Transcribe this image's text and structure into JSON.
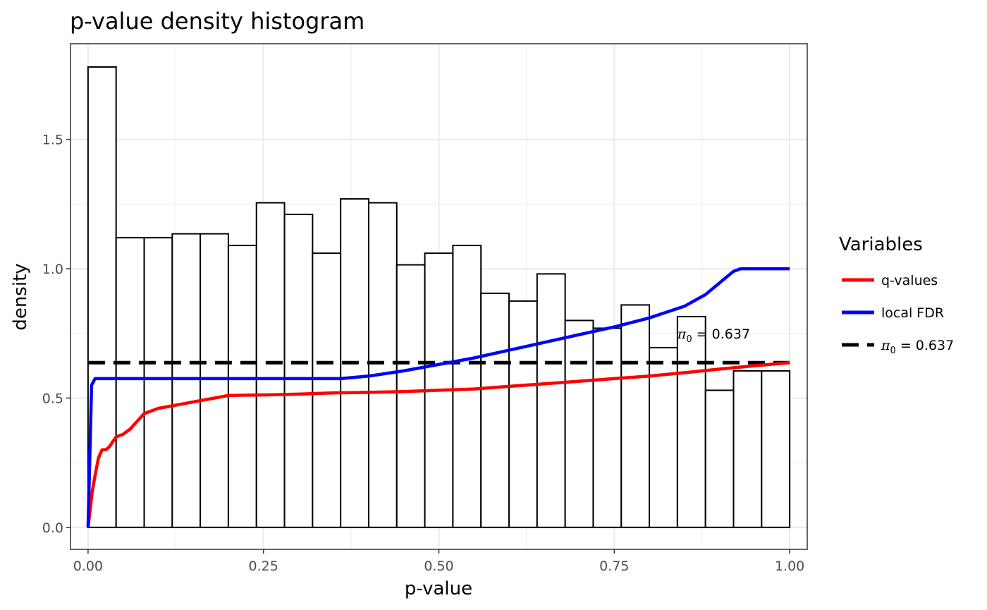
{
  "chart_data": {
    "type": "bar",
    "title": "p-value density histogram",
    "xlabel": "p-value",
    "ylabel": "density",
    "xlim": [
      -0.025,
      1.025
    ],
    "ylim": [
      -0.085,
      1.87
    ],
    "x_ticks": [
      0,
      0.25,
      0.5,
      0.75,
      1
    ],
    "x_tick_labels": [
      "0.00",
      "0.25",
      "0.50",
      "0.75",
      "1.00"
    ],
    "y_ticks": [
      0,
      0.5,
      1,
      1.5
    ],
    "y_tick_labels": [
      "0.0",
      "0.5",
      "1.0",
      "1.5"
    ],
    "grid": true,
    "bin_width": 0.04,
    "bins": [
      {
        "start": 0.0,
        "end": 0.04,
        "density": 1.78
      },
      {
        "start": 0.04,
        "end": 0.08,
        "density": 1.12
      },
      {
        "start": 0.08,
        "end": 0.12,
        "density": 1.12
      },
      {
        "start": 0.12,
        "end": 0.16,
        "density": 1.135
      },
      {
        "start": 0.16,
        "end": 0.2,
        "density": 1.135
      },
      {
        "start": 0.2,
        "end": 0.24,
        "density": 1.09
      },
      {
        "start": 0.24,
        "end": 0.28,
        "density": 1.255
      },
      {
        "start": 0.28,
        "end": 0.32,
        "density": 1.21
      },
      {
        "start": 0.32,
        "end": 0.36,
        "density": 1.06
      },
      {
        "start": 0.36,
        "end": 0.4,
        "density": 1.27
      },
      {
        "start": 0.4,
        "end": 0.44,
        "density": 1.255
      },
      {
        "start": 0.44,
        "end": 0.48,
        "density": 1.015
      },
      {
        "start": 0.48,
        "end": 0.52,
        "density": 1.06
      },
      {
        "start": 0.52,
        "end": 0.56,
        "density": 1.09
      },
      {
        "start": 0.56,
        "end": 0.6,
        "density": 0.905
      },
      {
        "start": 0.6,
        "end": 0.64,
        "density": 0.875
      },
      {
        "start": 0.64,
        "end": 0.68,
        "density": 0.98
      },
      {
        "start": 0.68,
        "end": 0.72,
        "density": 0.8
      },
      {
        "start": 0.72,
        "end": 0.76,
        "density": 0.77
      },
      {
        "start": 0.76,
        "end": 0.8,
        "density": 0.86
      },
      {
        "start": 0.8,
        "end": 0.84,
        "density": 0.695
      },
      {
        "start": 0.84,
        "end": 0.88,
        "density": 0.815
      },
      {
        "start": 0.88,
        "end": 0.92,
        "density": 0.53
      },
      {
        "start": 0.92,
        "end": 0.96,
        "density": 0.605
      },
      {
        "start": 0.96,
        "end": 1.0,
        "density": 0.605
      }
    ],
    "series": [
      {
        "name": "q-values",
        "color": "#ff0000",
        "x": [
          0,
          0.003,
          0.006,
          0.01,
          0.015,
          0.02,
          0.025,
          0.03,
          0.035,
          0.04,
          0.05,
          0.06,
          0.07,
          0.08,
          0.09,
          0.1,
          0.12,
          0.14,
          0.16,
          0.18,
          0.2,
          0.25,
          0.3,
          0.35,
          0.4,
          0.45,
          0.5,
          0.55,
          0.6,
          0.65,
          0.7,
          0.75,
          0.8,
          0.85,
          0.9,
          0.95,
          1.0
        ],
        "y": [
          0,
          0.07,
          0.14,
          0.2,
          0.27,
          0.3,
          0.3,
          0.31,
          0.33,
          0.35,
          0.36,
          0.38,
          0.41,
          0.44,
          0.45,
          0.46,
          0.47,
          0.48,
          0.49,
          0.5,
          0.51,
          0.512,
          0.515,
          0.52,
          0.522,
          0.525,
          0.53,
          0.535,
          0.545,
          0.555,
          0.565,
          0.575,
          0.585,
          0.598,
          0.612,
          0.625,
          0.637
        ]
      },
      {
        "name": "local FDR",
        "color": "#0000ff",
        "x": [
          0,
          0.005,
          0.01,
          0.36,
          0.4,
          0.45,
          0.5,
          0.55,
          0.6,
          0.65,
          0.7,
          0.75,
          0.8,
          0.85,
          0.88,
          0.9,
          0.92,
          0.93,
          1.0
        ],
        "y": [
          0,
          0.55,
          0.575,
          0.575,
          0.585,
          0.605,
          0.63,
          0.655,
          0.685,
          0.715,
          0.745,
          0.775,
          0.81,
          0.855,
          0.9,
          0.945,
          0.99,
          1.0,
          1.0
        ]
      }
    ],
    "hline": {
      "name": "π0 = 0.637",
      "y": 0.637,
      "color": "#000000",
      "style": "dashed"
    },
    "annotation": {
      "symbol": "π",
      "subscript": "0",
      "text": " = 0.637",
      "x": 0.84,
      "y": 0.73
    },
    "legend": {
      "title": "Variables",
      "position": "right",
      "items": [
        {
          "label": "q-values",
          "color": "#ff0000",
          "style": "solid"
        },
        {
          "label": "local FDR",
          "color": "#0000ff",
          "style": "solid"
        },
        {
          "label": "π0 = 0.637",
          "symbol": "π",
          "subscript": "0",
          "text": " = 0.637",
          "color": "#000000",
          "style": "dashed"
        }
      ]
    }
  }
}
